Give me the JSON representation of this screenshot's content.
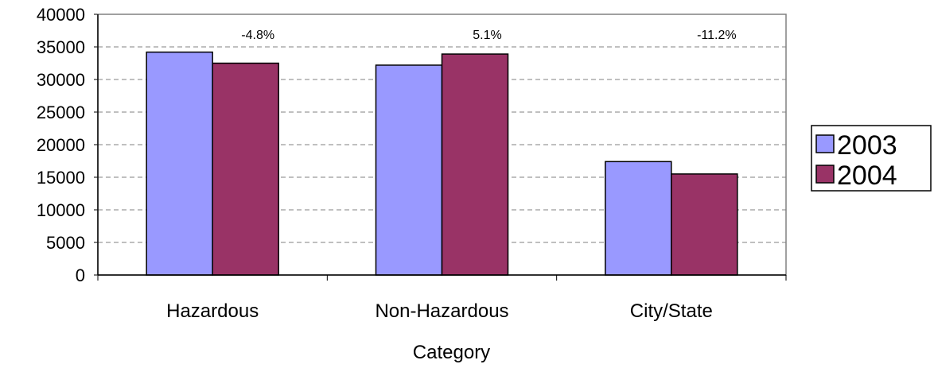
{
  "chart_data": {
    "type": "bar",
    "categories": [
      "Hazardous",
      "Non-Hazardous",
      "City/State"
    ],
    "series": [
      {
        "name": "2003",
        "values": [
          34200,
          32200,
          17400
        ],
        "color": "#9999ff"
      },
      {
        "name": "2004",
        "values": [
          32500,
          33900,
          15500
        ],
        "color": "#993366"
      }
    ],
    "annotations": [
      "-4.8%",
      "5.1%",
      "-11.2%"
    ],
    "xlabel": "Category",
    "ylabel": "",
    "ylim": [
      0,
      40000
    ],
    "yticks": [
      "0",
      "5000",
      "10000",
      "15000",
      "20000",
      "25000",
      "30000",
      "35000",
      "40000"
    ],
    "grid": "horizontal dashed",
    "legend_position": "right"
  }
}
